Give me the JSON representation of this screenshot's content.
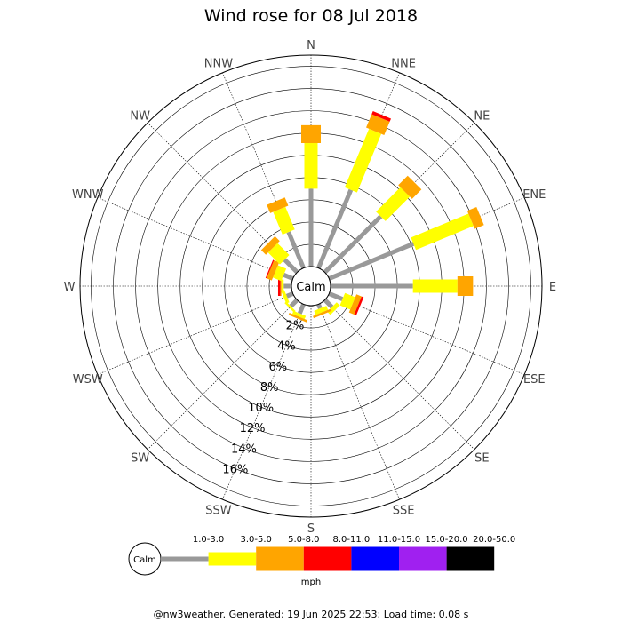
{
  "chart_data": {
    "type": "wind-rose",
    "title": "Wind rose for 08 Jul 2018",
    "directions": [
      "N",
      "NNE",
      "NE",
      "ENE",
      "E",
      "ESE",
      "SE",
      "SSE",
      "S",
      "SSW",
      "SW",
      "WSW",
      "W",
      "WNW",
      "NW",
      "NNW"
    ],
    "radial_max": 19,
    "radial_ticks": [
      2,
      4,
      6,
      8,
      10,
      12,
      14,
      16
    ],
    "radial_tick_labels": [
      "2%",
      "4%",
      "6%",
      "8%",
      "10%",
      "12%",
      "14%",
      "16%"
    ],
    "center_label": "Calm",
    "unit_label": "mph",
    "speed_bins": [
      {
        "label": "1.0-3.0",
        "color": "#999999"
      },
      {
        "label": "3.0-5.0",
        "color": "#ffff00"
      },
      {
        "label": "5.0-8.0",
        "color": "#ffa500"
      },
      {
        "label": "8.0-11.0",
        "color": "#ff0000"
      },
      {
        "label": "11.0-15.0",
        "color": "#0000ff"
      },
      {
        "label": "15.0-20.0",
        "color": "#a020f0"
      },
      {
        "label": "20.0-50.0",
        "color": "#000000"
      }
    ],
    "series": [
      {
        "bin": "1.0-3.0",
        "values": [
          7.0,
          7.6,
          7.1,
          8.2,
          7.4,
          1.3,
          0.9,
          0.4,
          0.1,
          0.9,
          0.8,
          0.6,
          0.7,
          0.9,
          1.6,
          3.5
        ]
      },
      {
        "bin": "3.0-5.0",
        "values": [
          4.1,
          5.7,
          3.1,
          5.6,
          4.0,
          1.0,
          0.4,
          0.4,
          0.0,
          0.3,
          0.2,
          0.3,
          0.2,
          0.8,
          1.5,
          2.2
        ]
      },
      {
        "bin": "5.0-8.0",
        "values": [
          1.6,
          1.3,
          1.2,
          0.9,
          1.4,
          0.5,
          0.0,
          0.2,
          0.0,
          0.2,
          0.0,
          0.0,
          0.1,
          0.5,
          0.6,
          0.8
        ]
      },
      {
        "bin": "8.0-11.0",
        "values": [
          0.0,
          0.3,
          0.0,
          0.0,
          0.0,
          0.2,
          0.0,
          0.0,
          0.0,
          0.0,
          0.0,
          0.0,
          0.2,
          0.1,
          0.0,
          0.0
        ]
      },
      {
        "bin": "11.0-15.0",
        "values": [
          0,
          0,
          0,
          0,
          0,
          0,
          0,
          0,
          0,
          0,
          0,
          0,
          0,
          0,
          0,
          0
        ]
      },
      {
        "bin": "15.0-20.0",
        "values": [
          0,
          0,
          0,
          0,
          0,
          0,
          0,
          0,
          0,
          0,
          0,
          0,
          0,
          0,
          0,
          0
        ]
      },
      {
        "bin": "20.0-50.0",
        "values": [
          0,
          0,
          0,
          0,
          0,
          0,
          0,
          0,
          0,
          0,
          0,
          0,
          0,
          0,
          0,
          0
        ]
      }
    ],
    "grid": true
  },
  "footer": "@nw3weather. Generated: 19 Jun 2025 22:53; Load time: 0.08 s"
}
